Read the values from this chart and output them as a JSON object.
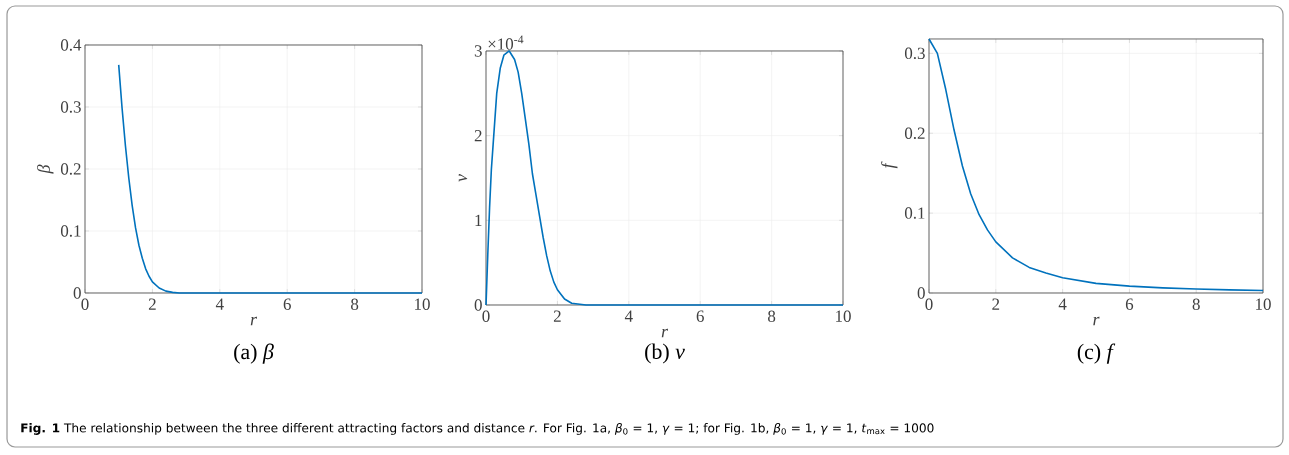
{
  "chart_data": [
    {
      "type": "line",
      "title": "(a) *β*",
      "xlabel": "r",
      "ylabel": "β",
      "color": "#0072bd",
      "grid": true,
      "x": [
        1,
        1.1,
        1.2,
        1.3,
        1.4,
        1.5,
        1.6,
        1.7,
        1.8,
        1.9,
        2,
        2.2,
        2.4,
        2.6,
        2.8,
        3,
        4,
        6,
        8,
        10
      ],
      "values": [
        0.368,
        0.298,
        0.237,
        0.185,
        0.141,
        0.105,
        0.077,
        0.056,
        0.039,
        0.027,
        0.018,
        0.008,
        0.003,
        0.001,
        0,
        0,
        0,
        0,
        0,
        0
      ],
      "xlim": [
        0,
        10
      ],
      "ylim": [
        0,
        0.4
      ],
      "xticks": [
        0,
        2,
        4,
        6,
        8,
        10
      ],
      "yticks": [
        0,
        0.1,
        0.2,
        0.3,
        0.4
      ],
      "annotations": [
        "**Fig. 1** The relationship between the three different attracting factors and distance *r*. For Fig. 1a, *β*$_{0}$ = 1, *γ* = 1; for Fig. 1b, *β*$_{0}$ = 1, *γ* = 1, *t*$_{max}$ = 1000"
      ]
    },
    {
      "type": "line",
      "title": "(b) *v*",
      "xlabel": "r",
      "ylabel": "v",
      "color": "#0072bd",
      "grid": true,
      "x": [
        0,
        0.05,
        0.1,
        0.15,
        0.2,
        0.3,
        0.4,
        0.5,
        0.65,
        0.8,
        0.9,
        1.0,
        1.1,
        1.2,
        1.3,
        1.4,
        1.5,
        1.6,
        1.7,
        1.8,
        1.9,
        2.0,
        2.2,
        2.4,
        2.6,
        2.8,
        3,
        4,
        6,
        8,
        10
      ],
      "values": [
        0,
        0.6,
        1.15,
        1.6,
        1.9,
        2.5,
        2.8,
        2.95,
        3.0,
        2.9,
        2.75,
        2.5,
        2.2,
        1.9,
        1.55,
        1.3,
        1.05,
        0.8,
        0.58,
        0.4,
        0.27,
        0.18,
        0.07,
        0.02,
        0.01,
        0,
        0,
        0,
        0,
        0,
        0
      ],
      "xlim": [
        0,
        10
      ],
      "ylim": [
        0,
        3
      ],
      "xticks": [
        0,
        2,
        4,
        6,
        8,
        10
      ],
      "yticks": [
        0,
        1,
        2,
        3
      ],
      "annotations": [
        "×10$^{-4}$"
      ]
    },
    {
      "type": "line",
      "title": "(c) *f*",
      "xlabel": "r",
      "ylabel": "f",
      "color": "#0072bd",
      "grid": true,
      "x": [
        0,
        0.25,
        0.5,
        0.75,
        1,
        1.25,
        1.5,
        1.75,
        2,
        2.5,
        3,
        3.5,
        4,
        5,
        6,
        7,
        8,
        9,
        10
      ],
      "values": [
        0.318,
        0.3,
        0.255,
        0.204,
        0.159,
        0.124,
        0.098,
        0.079,
        0.064,
        0.044,
        0.032,
        0.025,
        0.019,
        0.012,
        0.0086,
        0.0064,
        0.0049,
        0.0039,
        0.0032
      ],
      "xlim": [
        0,
        10
      ],
      "ylim": [
        0,
        0.318
      ],
      "xticks": [
        0,
        2,
        4,
        6,
        8,
        10
      ],
      "yticks": [
        0,
        0.1,
        0.2,
        0.3
      ]
    }
  ]
}
